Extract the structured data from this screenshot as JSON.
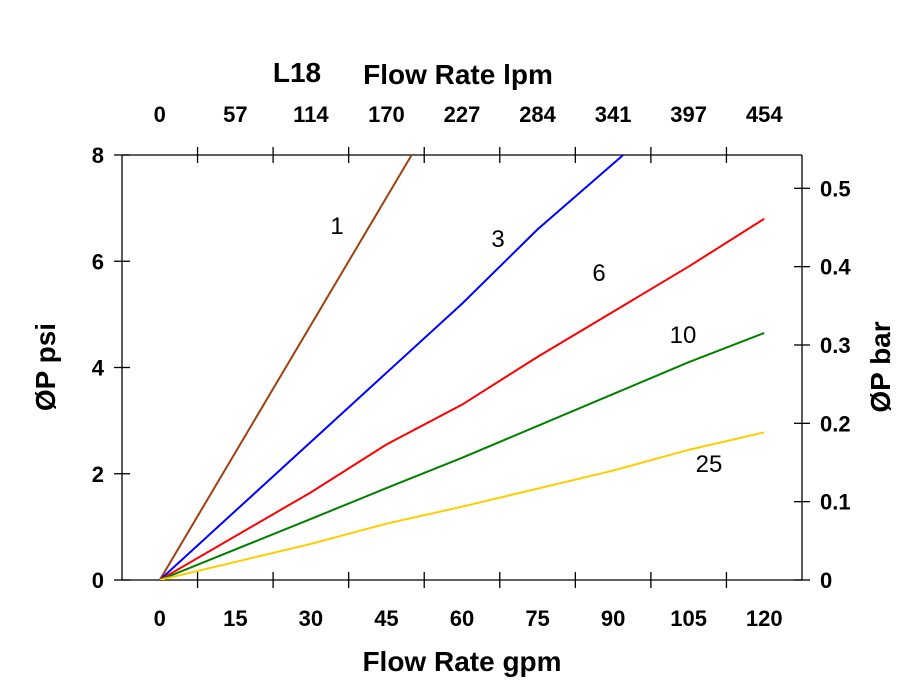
{
  "chart_data": {
    "type": "line",
    "title": "L18",
    "xlabel": "Flow Rate gpm",
    "x2label": "Flow Rate lpm",
    "ylabel": "ØP psi",
    "y2label": "ØP bar",
    "xlim": [
      -7.5,
      127.5
    ],
    "ylim": [
      0,
      8
    ],
    "y2lim": [
      0,
      0.5425
    ],
    "xticks": [
      "0",
      "15",
      "30",
      "45",
      "60",
      "75",
      "90",
      "105",
      "120"
    ],
    "x2ticks": [
      "0",
      "57",
      "114",
      "170",
      "227",
      "284",
      "341",
      "397",
      "454"
    ],
    "yticks": [
      "0",
      "2",
      "4",
      "6",
      "8"
    ],
    "y2ticks": [
      "0",
      "0.1",
      "0.2",
      "0.3",
      "0.4",
      "0.5"
    ],
    "grid": false,
    "series": [
      {
        "name": "1",
        "color": "#a0400f",
        "x": [
          0,
          50
        ],
        "y": [
          0,
          8
        ]
      },
      {
        "name": "3",
        "color": "#0000ff",
        "x": [
          0,
          30,
          45,
          60,
          75,
          92
        ],
        "y": [
          0,
          2.6,
          3.9,
          5.2,
          6.6,
          8
        ]
      },
      {
        "name": "6",
        "color": "#ff0000",
        "x": [
          0,
          30,
          45,
          60,
          75,
          90,
          105,
          120
        ],
        "y": [
          0,
          1.65,
          2.55,
          3.3,
          4.2,
          5.05,
          5.9,
          6.8
        ]
      },
      {
        "name": "10",
        "color": "#008000",
        "x": [
          0,
          30,
          45,
          60,
          75,
          90,
          105,
          120
        ],
        "y": [
          0,
          1.15,
          1.73,
          2.3,
          2.9,
          3.5,
          4.1,
          4.65
        ]
      },
      {
        "name": "25",
        "color": "#ffcc00",
        "x": [
          0,
          30,
          45,
          60,
          75,
          90,
          105,
          120
        ],
        "y": [
          0,
          0.68,
          1.06,
          1.38,
          1.72,
          2.06,
          2.45,
          2.78
        ]
      }
    ]
  }
}
